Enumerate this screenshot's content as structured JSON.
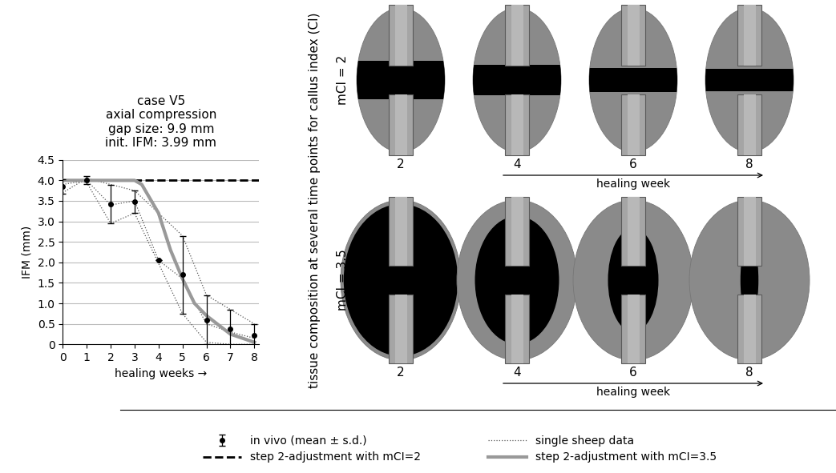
{
  "chart_data": {
    "type": "line",
    "title": "case V5\naxial compression\ngap size: 9.9 mm\ninit. IFM: 3.99 mm",
    "xlabel": "healing weeks →",
    "ylabel": "IFM (mm)",
    "xlim": [
      0,
      8.2
    ],
    "xticks": [
      0,
      1,
      2,
      3,
      4,
      5,
      6,
      7,
      8
    ],
    "ylim": [
      0,
      4.5
    ],
    "yticks": [
      0,
      0.5,
      {
        "value": 1,
        "label": "1.0"
      },
      1.5,
      {
        "value": 2,
        "label": "2.0"
      },
      2.5,
      {
        "value": 3,
        "label": "3.0"
      },
      3.5,
      {
        "value": 4,
        "label": "4.0"
      },
      4.5
    ],
    "grid": "y",
    "legend": "lower center",
    "series": [
      {
        "name": "in vivo (mean ± s.d.)",
        "type": "scatter",
        "color": "#000000",
        "marker": "o",
        "line_style": "none",
        "x": [
          0,
          1,
          2,
          3,
          4,
          5,
          6,
          7,
          8
        ],
        "values": [
          3.85,
          4.0,
          3.42,
          3.48,
          2.05,
          1.7,
          0.6,
          0.37,
          0.22
        ],
        "errors": [
          0.18,
          0.1,
          0.47,
          0.28,
          0,
          0.95,
          0.6,
          0.47,
          0.27
        ]
      },
      {
        "name": "step 2-adjustment with mCI=2",
        "type": "line",
        "color": "#000000",
        "line_style": "dashed",
        "x": [
          0,
          1,
          2,
          3,
          4,
          5,
          6,
          7,
          8,
          8.2
        ],
        "values": [
          4.0,
          4.0,
          4.0,
          4.0,
          4.0,
          4.0,
          4.0,
          4.0,
          4.0,
          4.0
        ]
      },
      {
        "name": "single sheep data",
        "type": "line",
        "color": "#555555",
        "line_style": "dotted",
        "lines": [
          {
            "x": [
              0,
              1,
              2,
              3,
              5,
              6,
              7,
              8
            ],
            "values": [
              3.7,
              4.05,
              3.9,
              3.75,
              2.65,
              1.2,
              0.85,
              0.5
            ]
          },
          {
            "x": [
              0,
              1,
              2,
              3,
              4,
              5,
              6,
              7,
              8
            ],
            "values": [
              3.9,
              4.0,
              3.4,
              3.5,
              2.05,
              1.6,
              0.5,
              0.3,
              0.15
            ]
          },
          {
            "x": [
              0,
              1,
              2,
              3,
              5,
              6,
              7,
              8
            ],
            "values": [
              4.0,
              3.95,
              2.95,
              3.2,
              0.75,
              0.05,
              0.0,
              0.0
            ]
          }
        ]
      },
      {
        "name": "step 2-adjustment with mCI=3.5",
        "type": "line",
        "color": "#999999",
        "line_style": "solid",
        "x": [
          0,
          1,
          2,
          3,
          3.3,
          4,
          4.5,
          5,
          5.5,
          6,
          7,
          8
        ],
        "values": [
          4.0,
          4.0,
          4.0,
          4.0,
          3.9,
          3.2,
          2.3,
          1.6,
          1.0,
          0.7,
          0.25,
          0.05
        ]
      }
    ]
  },
  "tissue_panel": {
    "label": "tissue composition at several time points for callus index (CI)",
    "xlabel": "healing week",
    "rows": [
      {
        "label": "mCI = 2",
        "weeks": [
          2,
          4,
          6,
          8
        ]
      },
      {
        "label": "mCI = 3.5",
        "weeks": [
          2,
          4,
          6,
          8
        ]
      }
    ]
  }
}
